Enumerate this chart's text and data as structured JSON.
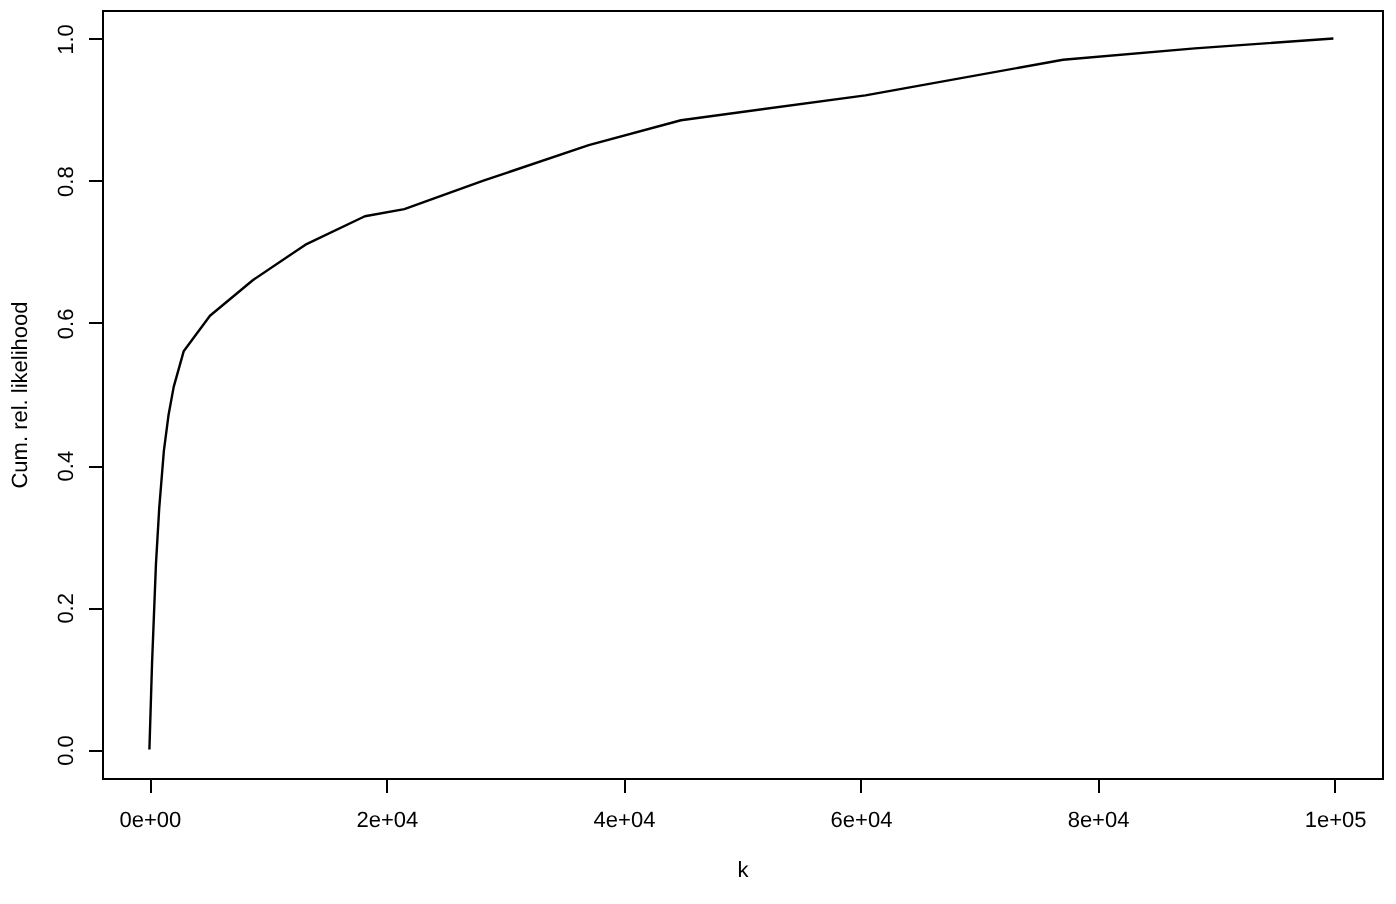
{
  "chart_data": {
    "type": "line",
    "xlabel": "k",
    "ylabel": "Cum. rel. likelihood",
    "x": [
      0,
      220,
      550,
      830,
      1220,
      1610,
      2050,
      2890,
      5110,
      8720,
      13170,
      18180,
      21510,
      28180,
      37070,
      44850,
      60410,
      77090,
      88210,
      99900
    ],
    "series": [
      {
        "color": "#000000",
        "values": [
          0,
          0.12,
          0.26,
          0.34,
          0.42,
          0.47,
          0.51,
          0.56,
          0.61,
          0.66,
          0.71,
          0.75,
          0.76,
          0.8,
          0.85,
          0.885,
          0.92,
          0.97,
          0.986,
          1.0
        ]
      }
    ],
    "xlim": [
      -4000,
      104000
    ],
    "ylim": [
      -0.04,
      1.04
    ],
    "xticks": [
      {
        "value": 0,
        "label": "0e+00"
      },
      {
        "value": 20000,
        "label": "2e+04"
      },
      {
        "value": 40000,
        "label": "4e+04"
      },
      {
        "value": 60000,
        "label": "6e+04"
      },
      {
        "value": 80000,
        "label": "8e+04"
      },
      {
        "value": 100000,
        "label": "1e+05"
      }
    ],
    "yticks": [
      {
        "value": 0,
        "label": "0.0"
      },
      {
        "value": 0.2,
        "label": "0.2"
      },
      {
        "value": 0.4,
        "label": "0.4"
      },
      {
        "value": 0.6,
        "label": "0.6"
      },
      {
        "value": 0.8,
        "label": "0.8"
      },
      {
        "value": 1.0,
        "label": "1.0"
      }
    ],
    "grid": false,
    "marker": "none",
    "line_style": "solid"
  }
}
